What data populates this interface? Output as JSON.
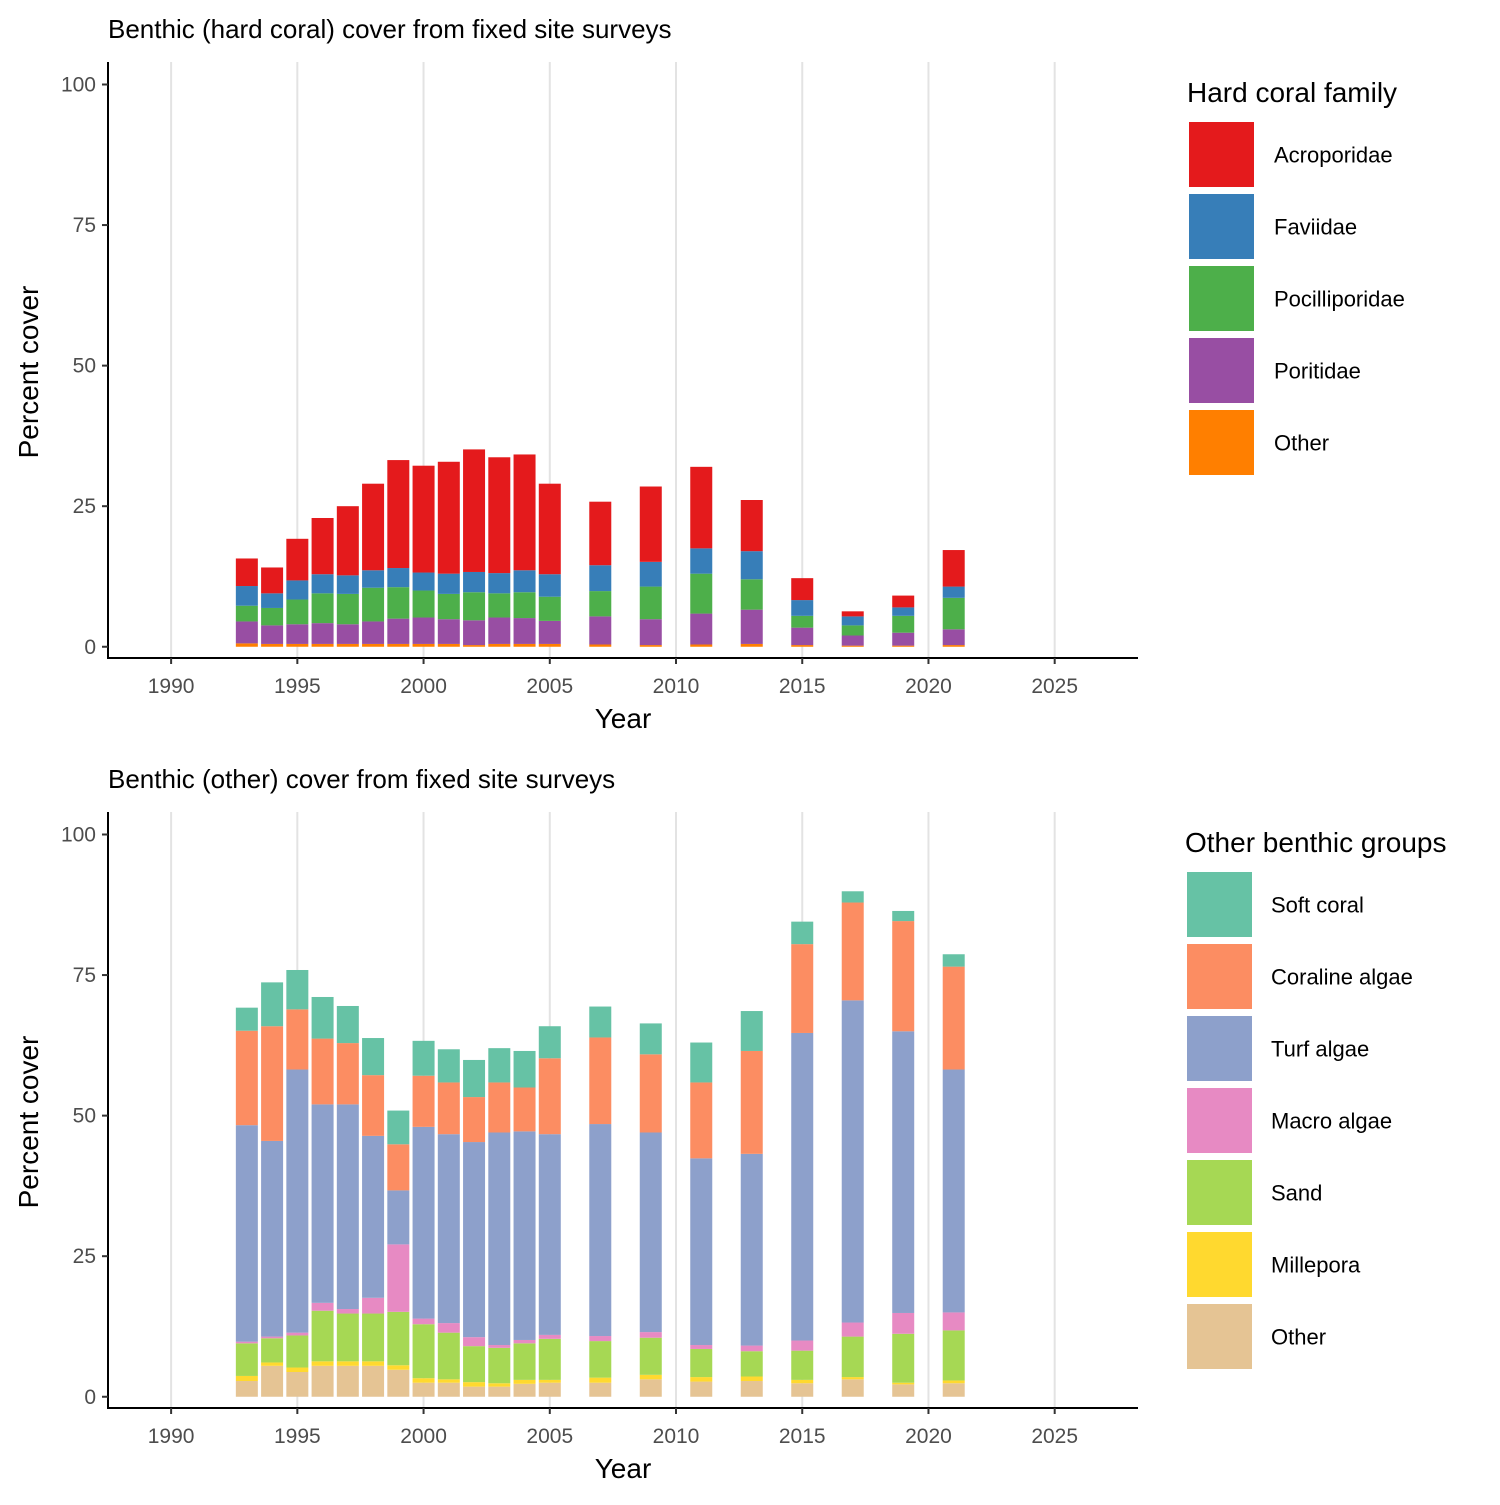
{
  "chart_data": [
    {
      "type": "bar",
      "stacked": true,
      "title": "Benthic (hard coral) cover from fixed site surveys",
      "xlabel": "Year",
      "ylabel": "Percent cover",
      "xlim": [
        1987.5,
        2028.3
      ],
      "ylim": [
        -2,
        104
      ],
      "x_ticks": [
        1990,
        1995,
        2000,
        2005,
        2010,
        2015,
        2020,
        2025
      ],
      "y_ticks": [
        0,
        25,
        50,
        75,
        100
      ],
      "vertical_grid": true,
      "legend": {
        "title": "Hard coral family",
        "position": "right"
      },
      "x": [
        1993,
        1994,
        1995,
        1996,
        1997,
        1998,
        1999,
        2000,
        2001,
        2002,
        2003,
        2004,
        2005,
        2007,
        2009,
        2011,
        2013,
        2015,
        2017,
        2019,
        2021
      ],
      "series": [
        {
          "name": "Other",
          "color": "#FF7F00",
          "values": [
            0.6,
            0.5,
            0.5,
            0.5,
            0.5,
            0.5,
            0.5,
            0.5,
            0.5,
            0.3,
            0.5,
            0.5,
            0.5,
            0.4,
            0.3,
            0.4,
            0.5,
            0.3,
            0.2,
            0.2,
            0.3
          ]
        },
        {
          "name": "Poritidae",
          "color": "#984EA3",
          "values": [
            3.9,
            3.3,
            3.5,
            3.7,
            3.5,
            4.0,
            4.5,
            4.7,
            4.4,
            4.4,
            4.7,
            4.6,
            4.1,
            5.0,
            4.6,
            5.5,
            6.1,
            3.1,
            1.8,
            2.3,
            2.8
          ]
        },
        {
          "name": "Pocilliporidae",
          "color": "#4DAF4A",
          "values": [
            2.8,
            3.1,
            4.4,
            5.3,
            5.4,
            6.0,
            5.6,
            4.8,
            4.5,
            5.0,
            4.3,
            4.6,
            4.3,
            4.5,
            5.8,
            7.1,
            5.4,
            2.1,
            1.8,
            3.0,
            5.6
          ]
        },
        {
          "name": "Faviidae",
          "color": "#377EB8",
          "values": [
            3.5,
            2.6,
            3.4,
            3.4,
            3.3,
            3.1,
            3.4,
            3.2,
            3.6,
            3.6,
            3.6,
            3.9,
            4.0,
            4.6,
            4.4,
            4.5,
            5.0,
            2.8,
            1.6,
            1.5,
            2.0
          ]
        },
        {
          "name": "Acroporidae",
          "color": "#E41A1C",
          "values": [
            4.9,
            4.6,
            7.4,
            10.0,
            12.3,
            15.4,
            19.2,
            19.0,
            19.9,
            21.8,
            20.6,
            20.6,
            16.1,
            11.3,
            13.4,
            14.5,
            9.1,
            3.9,
            0.9,
            2.1,
            6.5
          ]
        }
      ]
    },
    {
      "type": "bar",
      "stacked": true,
      "title": "Benthic (other) cover from fixed site surveys",
      "xlabel": "Year",
      "ylabel": "Percent cover",
      "xlim": [
        1987.5,
        2028.3
      ],
      "ylim": [
        -2,
        104
      ],
      "x_ticks": [
        1990,
        1995,
        2000,
        2005,
        2010,
        2015,
        2020,
        2025
      ],
      "y_ticks": [
        0,
        25,
        50,
        75,
        100
      ],
      "vertical_grid": true,
      "legend": {
        "title": "Other benthic groups",
        "position": "right"
      },
      "x": [
        1993,
        1994,
        1995,
        1996,
        1997,
        1998,
        1999,
        2000,
        2001,
        2002,
        2003,
        2004,
        2005,
        2007,
        2009,
        2011,
        2013,
        2015,
        2017,
        2019,
        2021
      ],
      "series": [
        {
          "name": "Other",
          "color": "#E5C494",
          "values": [
            2.8,
            5.5,
            4.4,
            5.5,
            5.5,
            5.5,
            4.8,
            2.5,
            2.5,
            1.8,
            1.8,
            2.3,
            2.5,
            2.5,
            3.1,
            2.7,
            2.8,
            2.4,
            3.1,
            2.2,
            2.4
          ]
        },
        {
          "name": "Millepora",
          "color": "#FFD92F",
          "values": [
            0.9,
            0.6,
            0.8,
            0.8,
            0.8,
            0.8,
            0.8,
            0.8,
            0.6,
            0.8,
            0.6,
            0.7,
            0.5,
            0.9,
            0.8,
            0.8,
            0.8,
            0.6,
            0.4,
            0.3,
            0.5
          ]
        },
        {
          "name": "Sand",
          "color": "#A6D854",
          "values": [
            5.8,
            4.3,
            5.7,
            9.0,
            8.5,
            8.5,
            9.5,
            9.6,
            8.3,
            6.4,
            6.3,
            6.5,
            7.3,
            6.5,
            6.6,
            5.0,
            4.5,
            5.2,
            7.2,
            8.7,
            8.9
          ]
        },
        {
          "name": "Macro algae",
          "color": "#E78AC3",
          "values": [
            0.3,
            0.3,
            0.5,
            1.4,
            0.8,
            2.8,
            12.0,
            1.0,
            1.7,
            1.6,
            0.5,
            0.6,
            0.7,
            0.9,
            1.0,
            0.7,
            1.0,
            1.8,
            2.5,
            3.7,
            3.2
          ]
        },
        {
          "name": "Turf algae",
          "color": "#8DA0CB",
          "values": [
            38.5,
            34.8,
            46.8,
            35.3,
            36.4,
            28.8,
            9.6,
            34.1,
            33.6,
            34.7,
            37.8,
            37.1,
            35.7,
            37.7,
            35.5,
            33.2,
            34.1,
            54.7,
            57.3,
            50.1,
            43.2
          ]
        },
        {
          "name": "Coraline algae",
          "color": "#FC8D62",
          "values": [
            16.8,
            20.4,
            10.7,
            11.7,
            10.9,
            10.8,
            8.2,
            9.1,
            9.2,
            8.0,
            8.9,
            7.8,
            13.5,
            15.4,
            13.9,
            13.5,
            18.3,
            15.8,
            17.4,
            19.6,
            18.3
          ]
        },
        {
          "name": "Soft coral",
          "color": "#66C2A5",
          "values": [
            4.1,
            7.8,
            7.0,
            7.4,
            6.6,
            6.6,
            6.0,
            6.2,
            5.9,
            6.6,
            6.1,
            6.5,
            5.7,
            5.5,
            5.5,
            7.1,
            7.1,
            4.0,
            2.0,
            1.8,
            2.2
          ]
        }
      ]
    }
  ]
}
